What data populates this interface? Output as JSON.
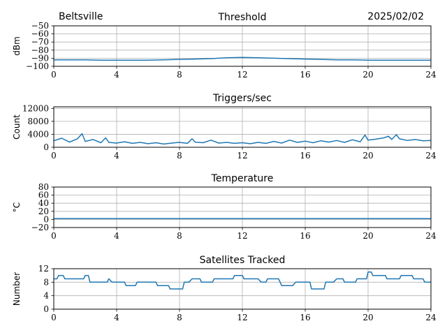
{
  "header": {
    "site": "Beltsville",
    "date": "2025/02/02"
  },
  "colors": {
    "series": "#1f77b4",
    "grid": "#b0b0b0"
  },
  "chart_data": [
    {
      "type": "line",
      "title": "Threshold",
      "ylabel": "dBm",
      "xlim": [
        0,
        24
      ],
      "ylim": [
        -100,
        -50
      ],
      "xticks": [
        0,
        4,
        8,
        12,
        16,
        20,
        24
      ],
      "yticks": [
        -100,
        -90,
        -80,
        -70,
        -60,
        -50
      ],
      "grid": true,
      "series": [
        {
          "x": [
            0,
            1,
            2,
            3,
            4,
            5,
            6,
            7,
            8,
            9,
            10,
            11,
            12,
            13,
            14,
            15,
            16,
            17,
            18,
            19,
            20,
            21,
            22,
            23,
            24
          ],
          "values": [
            -92,
            -92,
            -92,
            -92.5,
            -92.5,
            -92.5,
            -92.5,
            -92,
            -91.5,
            -91,
            -90.5,
            -89.5,
            -89,
            -89.5,
            -90,
            -90.5,
            -91,
            -91.5,
            -92,
            -92,
            -92.5,
            -92.5,
            -92.5,
            -92.5,
            -92.5
          ]
        }
      ]
    },
    {
      "type": "line",
      "title": "Triggers/sec",
      "ylabel": "Count",
      "xlim": [
        0,
        24
      ],
      "ylim": [
        0,
        12500
      ],
      "xticks": [
        0,
        4,
        8,
        12,
        16,
        20,
        24
      ],
      "yticks": [
        0,
        4000,
        8000,
        12000
      ],
      "grid": true,
      "series": [
        {
          "x": [
            0,
            0.5,
            1,
            1.5,
            1.8,
            2,
            2.5,
            3,
            3.3,
            3.5,
            4,
            4.5,
            5,
            5.5,
            6,
            6.5,
            7,
            7.5,
            8,
            8.5,
            8.8,
            9,
            9.5,
            10,
            10.5,
            11,
            11.5,
            12,
            12.5,
            13,
            13.5,
            14,
            14.5,
            15,
            15.5,
            16,
            16.5,
            17,
            17.5,
            18,
            18.5,
            19,
            19.5,
            19.8,
            20,
            20.5,
            21,
            21.3,
            21.5,
            21.8,
            22,
            22.5,
            23,
            23.5,
            24
          ],
          "values": [
            2000,
            2800,
            1600,
            2600,
            4200,
            1800,
            2400,
            1400,
            2900,
            1500,
            1300,
            1700,
            1200,
            1500,
            1100,
            1400,
            1000,
            1300,
            1500,
            1200,
            2600,
            1600,
            1400,
            2200,
            1300,
            1500,
            1200,
            1400,
            1100,
            1500,
            1200,
            1800,
            1300,
            2200,
            1500,
            1900,
            1400,
            2000,
            1600,
            2100,
            1500,
            2300,
            1700,
            3800,
            2200,
            2500,
            2900,
            3400,
            2400,
            3900,
            2600,
            2100,
            2400,
            2000,
            2100
          ]
        }
      ]
    },
    {
      "type": "line",
      "title": "Temperature",
      "ylabel": "°C",
      "xlim": [
        0,
        24
      ],
      "ylim": [
        -20,
        80
      ],
      "xticks": [
        0,
        4,
        8,
        12,
        16,
        20,
        24
      ],
      "yticks": [
        -20,
        0,
        20,
        40,
        60,
        80
      ],
      "grid": true,
      "series": [
        {
          "x": [
            0,
            24
          ],
          "values": [
            2,
            2
          ]
        }
      ]
    },
    {
      "type": "line",
      "title": "Satellites Tracked",
      "ylabel": "Number",
      "xlim": [
        0,
        24
      ],
      "ylim": [
        0,
        12
      ],
      "xticks": [
        0,
        4,
        8,
        12,
        16,
        20,
        24
      ],
      "yticks": [
        0,
        4,
        8,
        12
      ],
      "grid": true,
      "series": [
        {
          "x": [
            0,
            0.2,
            0.3,
            0.6,
            0.7,
            1.9,
            2.0,
            2.2,
            2.3,
            3.4,
            3.5,
            3.7,
            4.0,
            4.5,
            4.6,
            5.2,
            5.3,
            6.5,
            6.6,
            7.3,
            7.4,
            8.2,
            8.3,
            8.6,
            8.8,
            9.3,
            9.4,
            10.1,
            10.2,
            11.4,
            11.5,
            12.0,
            12.1,
            13.0,
            13.2,
            13.5,
            13.6,
            14.3,
            14.5,
            15.2,
            15.4,
            16.3,
            16.4,
            17.2,
            17.3,
            17.8,
            18.0,
            18.4,
            18.5,
            19.2,
            19.3,
            19.9,
            20.0,
            20.2,
            20.3,
            21.1,
            21.2,
            22.0,
            22.1,
            22.8,
            22.9,
            23.5,
            23.6,
            24
          ],
          "values": [
            9,
            9,
            10,
            10,
            9,
            9,
            10,
            10,
            8,
            8,
            9,
            8,
            8,
            8,
            7,
            7,
            8,
            8,
            7,
            7,
            6,
            6,
            8,
            8,
            9,
            9,
            8,
            8,
            9,
            9,
            10,
            10,
            9,
            9,
            8,
            8,
            9,
            9,
            7,
            7,
            8,
            8,
            6,
            6,
            8,
            8,
            9,
            9,
            8,
            8,
            9,
            9,
            11,
            11,
            10,
            10,
            9,
            9,
            10,
            10,
            9,
            9,
            8,
            8
          ]
        }
      ]
    }
  ]
}
